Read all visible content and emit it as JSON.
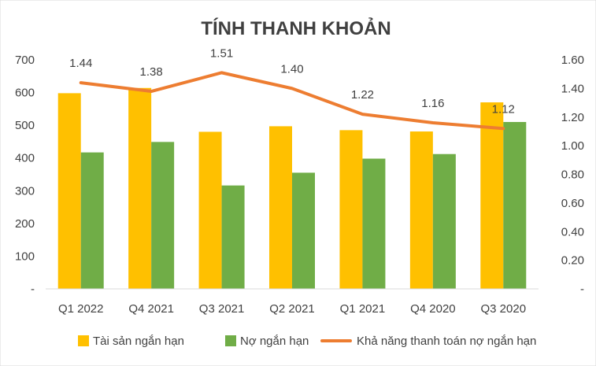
{
  "chart_data": {
    "type": "bar",
    "title": "TÍNH THANH KHOẢN",
    "xlabel": "",
    "ylabel": "",
    "categories": [
      "Q1 2022",
      "Q4 2021",
      "Q3 2021",
      "Q2 2021",
      "Q1 2021",
      "Q4 2020",
      "Q3 2020"
    ],
    "ylim": [
      0,
      700
    ],
    "y_ticks": [
      "-",
      "100",
      "200",
      "300",
      "400",
      "500",
      "600",
      "700"
    ],
    "y2lim": [
      0,
      1.6
    ],
    "y2_ticks": [
      "-",
      "0.20",
      "0.40",
      "0.60",
      "0.80",
      "1.00",
      "1.20",
      "1.40",
      "1.60"
    ],
    "grid": false,
    "legend_position": "bottom",
    "series": [
      {
        "name": "Tài sản ngắn hạn",
        "type": "bar",
        "axis": "left",
        "color": "#FFC000",
        "values": [
          598,
          614,
          480,
          497,
          485,
          481,
          570
        ]
      },
      {
        "name": "Nợ ngắn hạn",
        "type": "bar",
        "axis": "left",
        "color": "#70AD47",
        "values": [
          417,
          449,
          316,
          355,
          398,
          412,
          510
        ]
      },
      {
        "name": "Khả năng thanh toán nợ ngắn hạn",
        "type": "line",
        "axis": "right",
        "color": "#ED7D31",
        "values": [
          1.44,
          1.38,
          1.51,
          1.4,
          1.22,
          1.16,
          1.12
        ],
        "labels": [
          "1.44",
          "1.38",
          "1.51",
          "1.40",
          "1.22",
          "1.16",
          "1.12"
        ]
      }
    ]
  }
}
